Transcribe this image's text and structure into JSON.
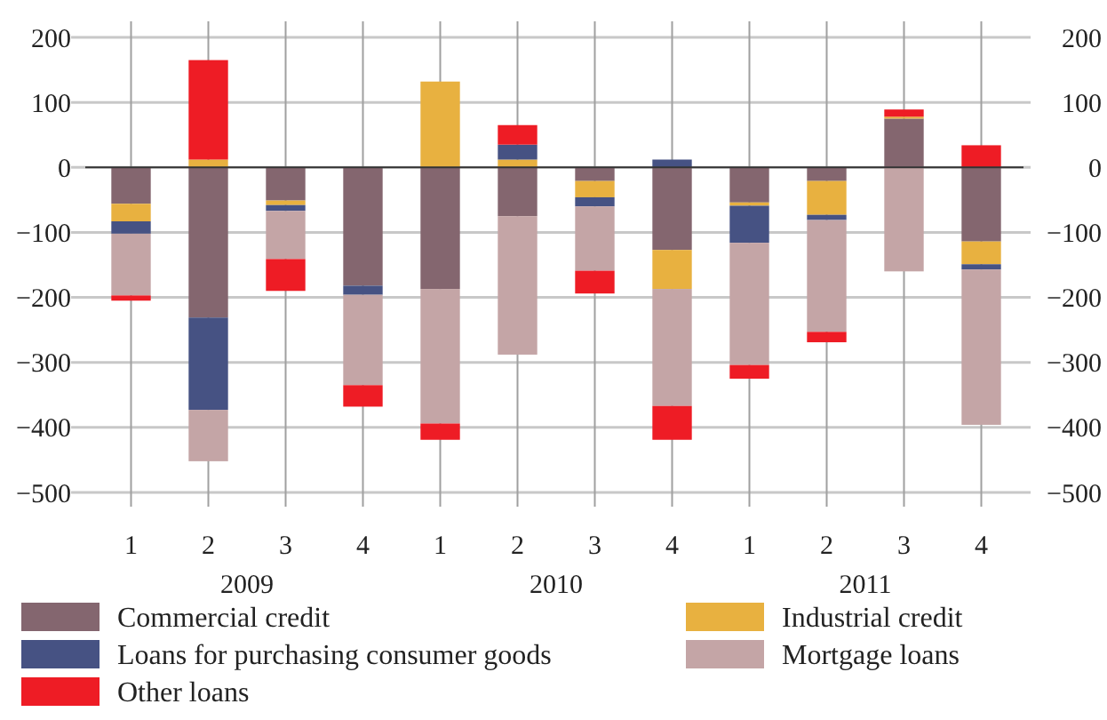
{
  "chart_data": {
    "type": "bar",
    "stacked": true,
    "grid": true,
    "legend": "bottom",
    "categories": [
      "1",
      "2",
      "3",
      "4",
      "1",
      "2",
      "3",
      "4",
      "1",
      "2",
      "3",
      "4"
    ],
    "annotations": [
      "2009",
      "2010",
      "2011"
    ],
    "ylim": [
      -500,
      200
    ],
    "yticks": [
      -500,
      -400,
      -300,
      -200,
      -100,
      0,
      100,
      200
    ],
    "y2lim": [
      -500,
      200
    ],
    "y2ticks": [
      -500,
      -400,
      -300,
      -200,
      -100,
      0,
      100,
      200
    ],
    "series": [
      {
        "name": "Commercial credit",
        "color": "#84666f",
        "values": [
          -56,
          -231,
          -51,
          -182,
          -187,
          -75,
          -21,
          -127,
          -54,
          -21,
          75,
          -114
        ]
      },
      {
        "name": "Industrial credit",
        "color": "#e8b140",
        "values": [
          -27,
          12,
          -7,
          null,
          132,
          12,
          -25,
          -60,
          -5,
          -52,
          3,
          -35
        ]
      },
      {
        "name": "Loans for purchasing consumer goods",
        "color": "#465283",
        "values": [
          -19,
          -142,
          -9,
          -14,
          null,
          23,
          -14,
          12,
          -57,
          -8,
          null,
          -8
        ]
      },
      {
        "name": "Mortgage loans",
        "color": "#c4a5a6",
        "values": [
          -95,
          -79,
          -74,
          -139,
          -207,
          -213,
          -99,
          -180,
          -188,
          -172,
          -160,
          -239
        ]
      },
      {
        "name": "Other loans",
        "color": "#ee1c25",
        "values": [
          -8,
          153,
          -49,
          -33,
          -25,
          30,
          -35,
          -52,
          -21,
          -16,
          11,
          34
        ]
      }
    ]
  }
}
